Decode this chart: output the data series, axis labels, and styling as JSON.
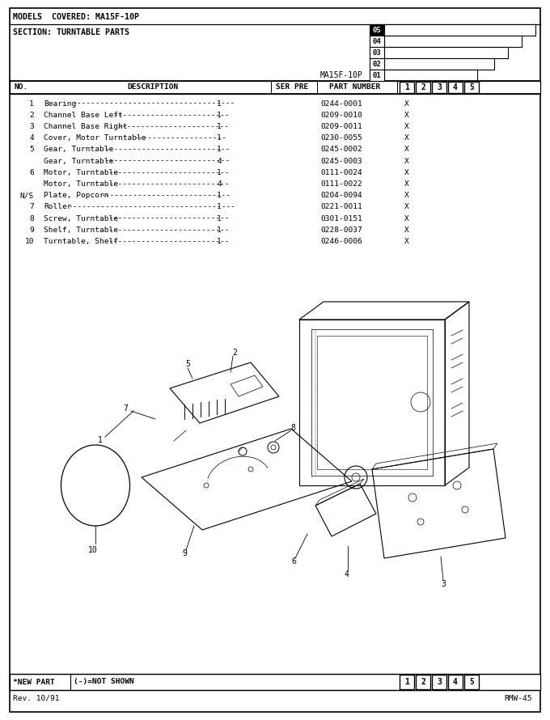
{
  "title": "MODELS  COVERED: MA15F-10P",
  "section": "SECTION: TURNTABLE PARTS",
  "model_label": "MA15F-10P",
  "tab_labels": [
    "05",
    "04",
    "03",
    "02",
    "01"
  ],
  "parts": [
    {
      "no": "1",
      "desc": "Bearing",
      "qty": "1",
      "part": "0244-0001",
      "col1": "X"
    },
    {
      "no": "2",
      "desc": "Channel Base Left",
      "qty": "1",
      "part": "0209-0010",
      "col1": "X"
    },
    {
      "no": "3",
      "desc": "Channel Base Right",
      "qty": "1",
      "part": "0209-0011",
      "col1": "X"
    },
    {
      "no": "4",
      "desc": "Cover, Motor Turntable",
      "qty": "1",
      "part": "0230-0055",
      "col1": "X"
    },
    {
      "no": "5",
      "desc": "Gear, Turntable",
      "qty": "1",
      "part": "0245-0002",
      "col1": "X"
    },
    {
      "no": "",
      "desc": "Gear, Turntable",
      "qty": "4",
      "part": "0245-0003",
      "col1": "X"
    },
    {
      "no": "6",
      "desc": "Motor, Turntable",
      "qty": "1",
      "part": "0111-0024",
      "col1": "X"
    },
    {
      "no": "",
      "desc": "Motor, Turntable",
      "qty": "4",
      "part": "0111-0022",
      "col1": "X"
    },
    {
      "no": "N/S",
      "desc": "Plate, Popcorn",
      "qty": "1",
      "part": "0204-0094",
      "col1": "X"
    },
    {
      "no": "7",
      "desc": "Roller",
      "qty": "1",
      "part": "0221-0011",
      "col1": "X"
    },
    {
      "no": "8",
      "desc": "Screw, Turntable",
      "qty": "1",
      "part": "0301-0151",
      "col1": "X"
    },
    {
      "no": "9",
      "desc": "Shelf, Turntable",
      "qty": "1",
      "part": "0228-0037",
      "col1": "X"
    },
    {
      "no": "10",
      "desc": "Turntable, Shelf",
      "qty": "1",
      "part": "0246-0006",
      "col1": "X"
    }
  ],
  "footer_rev": "Rev. 10/91",
  "footer_code": "RMW-45",
  "bg_color": "#ffffff",
  "border_color": "#000000"
}
